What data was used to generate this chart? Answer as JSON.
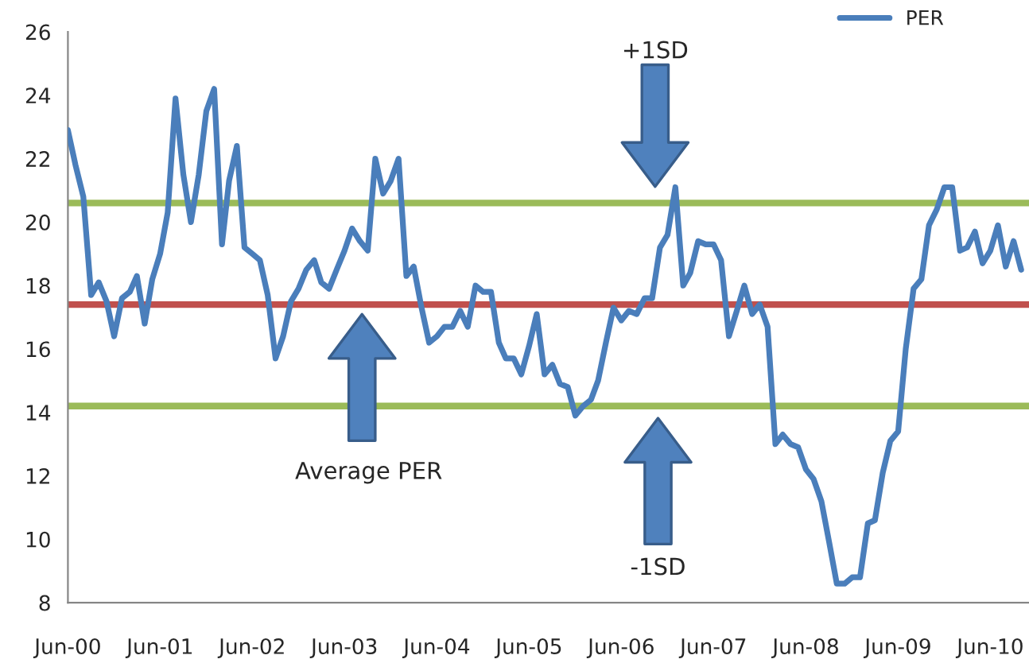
{
  "chart_data": {
    "type": "line",
    "x": [
      "2000-06",
      "2000-07",
      "2000-08",
      "2000-09",
      "2000-10",
      "2000-11",
      "2000-12",
      "2001-01",
      "2001-02",
      "2001-03",
      "2001-04",
      "2001-05",
      "2001-06",
      "2001-07",
      "2001-08",
      "2001-09",
      "2001-10",
      "2001-11",
      "2001-12",
      "2002-01",
      "2002-02",
      "2002-03",
      "2002-04",
      "2002-05",
      "2002-06",
      "2002-07",
      "2002-08",
      "2002-09",
      "2002-10",
      "2002-11",
      "2002-12",
      "2003-01",
      "2003-02",
      "2003-03",
      "2003-04",
      "2003-05",
      "2003-06",
      "2003-07",
      "2003-08",
      "2003-09",
      "2003-10",
      "2003-11",
      "2003-12",
      "2004-01",
      "2004-02",
      "2004-03",
      "2004-04",
      "2004-05",
      "2004-06",
      "2004-07",
      "2004-08",
      "2004-09",
      "2004-10",
      "2004-11",
      "2004-12",
      "2005-01",
      "2005-02",
      "2005-03",
      "2005-04",
      "2005-05",
      "2005-06",
      "2005-07",
      "2005-08",
      "2005-09",
      "2005-10",
      "2005-11",
      "2005-12",
      "2006-01",
      "2006-02",
      "2006-03",
      "2006-04",
      "2006-05",
      "2006-06",
      "2006-07",
      "2006-08",
      "2006-09",
      "2006-10",
      "2006-11",
      "2006-12",
      "2007-01",
      "2007-02",
      "2007-03",
      "2007-04",
      "2007-05",
      "2007-06",
      "2007-07",
      "2007-08",
      "2007-09",
      "2007-10",
      "2007-11",
      "2007-12",
      "2008-01",
      "2008-02",
      "2008-03",
      "2008-04",
      "2008-05",
      "2008-06",
      "2008-07",
      "2008-08",
      "2008-09",
      "2008-10",
      "2008-11",
      "2008-12",
      "2009-01",
      "2009-02",
      "2009-03",
      "2009-04",
      "2009-05",
      "2009-06",
      "2009-07",
      "2009-08",
      "2009-09",
      "2009-10",
      "2009-11",
      "2009-12",
      "2010-01",
      "2010-02",
      "2010-03",
      "2010-04",
      "2010-05",
      "2010-06",
      "2010-07",
      "2010-08",
      "2010-09",
      "2010-10"
    ],
    "series": [
      {
        "name": "PER",
        "color": "#4a7ebb",
        "values": [
          22.9,
          21.8,
          20.8,
          17.7,
          18.1,
          17.5,
          16.4,
          17.6,
          17.8,
          18.3,
          16.8,
          18.2,
          19.0,
          20.3,
          23.9,
          21.5,
          20.0,
          21.5,
          23.5,
          24.2,
          19.3,
          21.3,
          22.4,
          19.2,
          19.0,
          18.8,
          17.7,
          15.7,
          16.4,
          17.5,
          17.9,
          18.5,
          18.8,
          18.1,
          17.9,
          18.5,
          19.1,
          19.8,
          19.4,
          19.1,
          22.0,
          20.9,
          21.3,
          22.0,
          18.3,
          18.6,
          17.3,
          16.2,
          16.4,
          16.7,
          16.7,
          17.2,
          16.7,
          18.0,
          17.8,
          17.8,
          16.2,
          15.7,
          15.7,
          15.2,
          16.1,
          17.1,
          15.2,
          15.5,
          14.9,
          14.8,
          13.9,
          14.2,
          14.4,
          15.0,
          16.2,
          17.3,
          16.9,
          17.2,
          17.1,
          17.6,
          17.6,
          19.2,
          19.6,
          21.1,
          18.0,
          18.4,
          19.4,
          19.3,
          19.3,
          18.8,
          16.4,
          17.2,
          18.0,
          17.1,
          17.4,
          16.7,
          13.0,
          13.3,
          13.0,
          12.9,
          12.2,
          11.9,
          11.2,
          9.9,
          8.6,
          8.6,
          8.8,
          8.8,
          10.5,
          10.6,
          12.1,
          13.1,
          13.4,
          16.0,
          17.9,
          18.2,
          19.9,
          20.4,
          21.1,
          21.1,
          19.1,
          19.2,
          19.7,
          18.7,
          19.1,
          19.9,
          18.6,
          19.4,
          18.5
        ]
      }
    ],
    "xlim": [
      "2000-06",
      "2010-11"
    ],
    "xticks": [
      {
        "value": "2000-06",
        "label": "Jun-00"
      },
      {
        "value": "2001-06",
        "label": "Jun-01"
      },
      {
        "value": "2002-06",
        "label": "Jun-02"
      },
      {
        "value": "2003-06",
        "label": "Jun-03"
      },
      {
        "value": "2004-06",
        "label": "Jun-04"
      },
      {
        "value": "2005-06",
        "label": "Jun-05"
      },
      {
        "value": "2006-06",
        "label": "Jun-06"
      },
      {
        "value": "2007-06",
        "label": "Jun-07"
      },
      {
        "value": "2008-06",
        "label": "Jun-08"
      },
      {
        "value": "2009-06",
        "label": "Jun-09"
      },
      {
        "value": "2010-06",
        "label": "Jun-10"
      }
    ],
    "ylim": [
      8,
      26
    ],
    "yticks": [
      8,
      10,
      12,
      14,
      16,
      18,
      20,
      22,
      24,
      26
    ],
    "ref_lines": [
      {
        "axis": "y",
        "value": 20.6,
        "color": "#9bbb59"
      },
      {
        "axis": "y",
        "value": 17.4,
        "color": "#c0504d"
      },
      {
        "axis": "y",
        "value": 14.2,
        "color": "#9bbb59"
      }
    ],
    "annotations": [
      "+1SD",
      "Average PER",
      "-1SD"
    ],
    "legend": "top right",
    "grid": false,
    "marker": "none",
    "line_style": "solid"
  }
}
